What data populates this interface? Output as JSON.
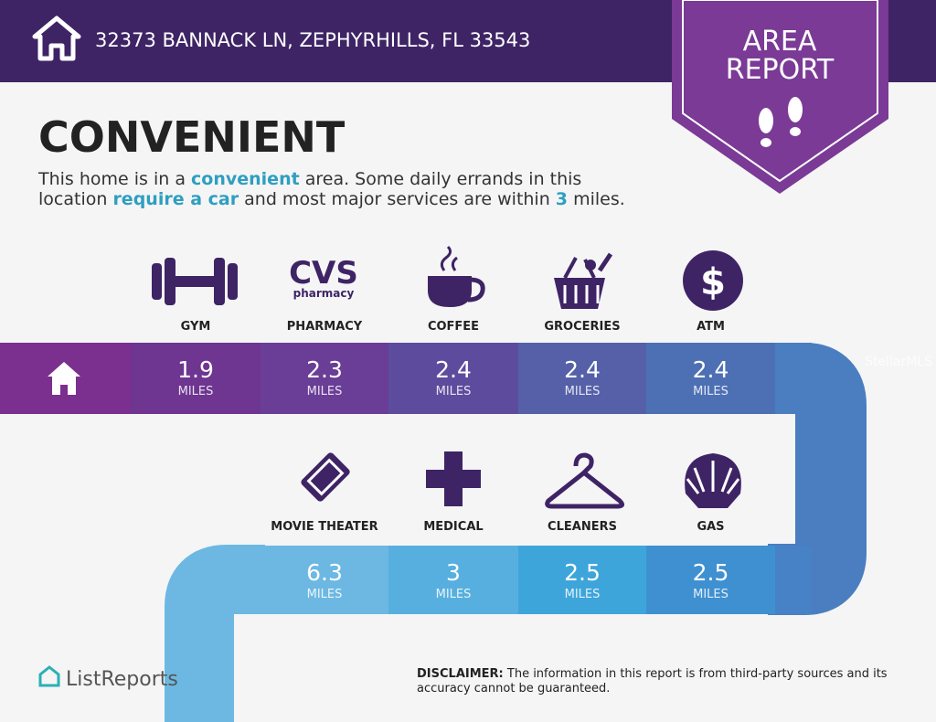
{
  "header": {
    "address": "32373 BANNACK LN, ZEPHYRHILLS, FL 33543"
  },
  "badge": {
    "line1": "AREA",
    "line2": "REPORT"
  },
  "title": "CONVENIENT",
  "description": [
    [
      {
        "text": "This home is in a "
      },
      {
        "text": "convenient",
        "highlight": true
      },
      {
        "text": " area. Some daily errands in this"
      }
    ],
    [
      {
        "text": "location "
      },
      {
        "text": "require a car",
        "highlight": true
      },
      {
        "text": " and most major services are within "
      },
      {
        "text": "3",
        "highlight": true
      },
      {
        "text": " miles."
      }
    ]
  ],
  "services": [
    {
      "label": "GYM",
      "distance": 1.9,
      "unit": "MILES"
    },
    {
      "label": "PHARMACY",
      "distance": 2.3,
      "unit": "MILES"
    },
    {
      "label": "COFFEE",
      "distance": 2.4,
      "unit": "MILES"
    },
    {
      "label": "GROCERIES",
      "distance": 2.4,
      "unit": "MILES"
    },
    {
      "label": "ATM",
      "distance": 2.4,
      "unit": "MILES"
    },
    {
      "label": "MOVIE THEATER",
      "distance": 6.3,
      "unit": "MILES"
    },
    {
      "label": "MEDICAL",
      "distance": 3,
      "unit": "MILES"
    },
    {
      "label": "CLEANERS",
      "distance": 2.5,
      "unit": "MILES"
    },
    {
      "label": "GAS",
      "distance": 2.5,
      "unit": "MILES"
    }
  ],
  "pharmacy_logo": {
    "brand": "CVS",
    "sub": "pharmacy"
  },
  "atm_symbol": "$",
  "watermark": "StellarMLS",
  "footer": {
    "logo": "ListReports",
    "disclaimer_label": "DISCLAIMER:",
    "disclaimer_line1": " The information in this report is from third-party sources and its",
    "disclaimer_line2": "accuracy cannot be guaranteed."
  }
}
